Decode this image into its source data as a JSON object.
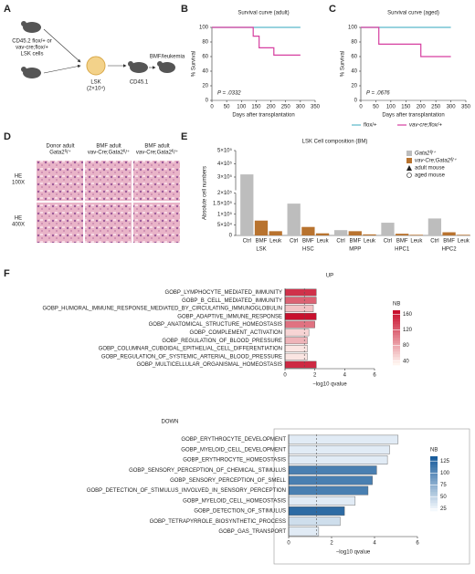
{
  "panel_labels": [
    "A",
    "B",
    "C",
    "D",
    "E",
    "F"
  ],
  "diagram": {
    "donor": [
      "CD45.2 flox/+ or",
      "vav-cre;flox/+",
      "LSK cells"
    ],
    "lsk": [
      "LSK",
      "(2×10⁴)"
    ],
    "recipient": "CD45.1",
    "outcome": "BMF/leukemia"
  },
  "histology": {
    "columns": [
      [
        "Donor adult",
        "Gata2ᶠˡ/⁺"
      ],
      [
        "BMF adult",
        "vav-Cre;Gata2ᶠˡ/⁺"
      ],
      [
        "BMF adult",
        "vav-Cre;Gata2ᶠˡ/⁺"
      ]
    ],
    "rows": [
      [
        "HE",
        "100X"
      ],
      [
        "HE",
        "400X"
      ]
    ]
  },
  "chart_data": [
    {
      "type": "line",
      "title": "Survival curve (adult)",
      "ylabel": "% Survival",
      "xlabel": "Days after transplantation",
      "annotation": "P = .0332",
      "xlim": [
        0,
        350
      ],
      "xticks": [
        0,
        50,
        100,
        150,
        200,
        250,
        300,
        350
      ],
      "ylim": [
        0,
        100
      ],
      "yticks": [
        0,
        20,
        40,
        60,
        80,
        100
      ],
      "legend": false,
      "series": [
        {
          "color": "#5bb8c9",
          "x": [
            0,
            300
          ],
          "values": [
            100,
            100
          ]
        },
        {
          "color": "#d63fa0",
          "x": [
            0,
            140,
            140,
            160,
            160,
            210,
            210,
            300
          ],
          "values": [
            100,
            100,
            88,
            88,
            72,
            72,
            62,
            62
          ]
        }
      ]
    },
    {
      "type": "line",
      "title": "Survival curve (aged)",
      "ylabel": "% Survival",
      "xlabel": "Days after transplantation",
      "annotation": "P = .0676",
      "xlim": [
        0,
        350
      ],
      "xticks": [
        0,
        50,
        100,
        150,
        200,
        250,
        300,
        350
      ],
      "ylim": [
        0,
        100
      ],
      "yticks": [
        0,
        20,
        40,
        60,
        80,
        100
      ],
      "legend": "bottom",
      "series": [
        {
          "name": "flox/+",
          "color": "#5bb8c9",
          "x": [
            0,
            300
          ],
          "values": [
            100,
            100
          ]
        },
        {
          "name": "vav-cre;flox/+",
          "color": "#d63fa0",
          "x": [
            0,
            60,
            60,
            200,
            200,
            300
          ],
          "values": [
            100,
            100,
            77,
            77,
            60,
            60
          ]
        }
      ]
    },
    {
      "type": "bar",
      "title": "LSK Cell composition (BM)",
      "ylabel": "Absolute cell numbers",
      "groups": [
        "LSK",
        "HSC",
        "MPP",
        "HPC1",
        "HPC2"
      ],
      "categories": [
        "Ctrl",
        "BMF",
        "Leuk"
      ],
      "colors": [
        "#bdbdbd",
        "#b8732f",
        "#b8732f"
      ],
      "values": [
        [
          320000,
          70000,
          20000
        ],
        [
          150000,
          40000,
          10000
        ],
        [
          25000,
          20000,
          5000
        ],
        [
          60000,
          8000,
          3000
        ],
        [
          80000,
          15000,
          3000
        ]
      ],
      "ylim": [
        0,
        500000
      ],
      "axis_break": 200000,
      "yticks": [
        0,
        {
          "value": 50000,
          "label": "5×10⁴"
        },
        {
          "value": 100000,
          "label": "1×10⁵"
        },
        {
          "value": 150000,
          "label": "1.5×10⁵"
        },
        {
          "value": 200000,
          "label": "2×10⁵"
        },
        {
          "value": 300000,
          "label": "3×10⁵"
        },
        {
          "value": 400000,
          "label": "4×10⁵"
        },
        {
          "value": 500000,
          "label": "5×10⁵"
        }
      ],
      "legend": [
        {
          "label": "Gata2ᶠˡ/⁺",
          "color": "#bdbdbd"
        },
        {
          "label": "vav-Cre;Gata2ᶠˡ/⁺",
          "color": "#b8732f"
        },
        {
          "label": "adult mouse",
          "marker": "triangle"
        },
        {
          "label": "aged mouse",
          "marker": "circle"
        }
      ]
    },
    {
      "type": "hbar",
      "header": "UP",
      "xlabel": "−log10 qvalue",
      "xlim": [
        0,
        6
      ],
      "xticks": [
        0,
        2,
        4,
        6
      ],
      "threshold": 1.3,
      "categories": [
        "GOBP_LYMPHOCYTE_MEDIATED_IMMUNITY",
        "GOBP_B_CELL_MEDIATED_IMMUNITY",
        "GOBP_HUMORAL_IMMUNE_RESPONSE_MEDIATED_BY_CIRCULATING_IMMUNOGLOBULIN",
        "GOBP_ADAPTIVE_IMMUNE_RESPONSE",
        "GOBP_ANATOMICAL_STRUCTURE_HOMEOSTASIS",
        "GOBP_COMPLEMENT_ACTIVATION",
        "GOBP_REGULATION_OF_BLOOD_PRESSURE",
        "GOBP_COLUMNAR_CUBOIDAL_EPITHELIAL_CELL_DIFFERENTIATION",
        "GOBP_REGULATION_OF_SYSTEMIC_ARTERIAL_BLOOD_PRESSURE",
        "GOBP_MULTICELLULAR_ORGANISMAL_HOMEOSTASIS"
      ],
      "values": [
        2.1,
        2.1,
        1.9,
        2.1,
        2.0,
        1.6,
        1.5,
        1.5,
        1.5,
        2.1
      ],
      "nb": [
        150,
        120,
        60,
        170,
        110,
        50,
        70,
        40,
        40,
        155
      ],
      "colorbar": {
        "title": "NB",
        "lim": [
          30,
          170
        ],
        "ticks": [
          40,
          80,
          120,
          160
        ],
        "colors": [
          "#fff5f0",
          "#c8102e"
        ]
      }
    },
    {
      "type": "hbar",
      "header": "DOWN",
      "xlabel": "−log10 qvalue",
      "xlim": [
        0,
        6
      ],
      "xticks": [
        0,
        2,
        4,
        6
      ],
      "threshold": 1.3,
      "categories": [
        "GOBP_ERYTHROCYTE_DEVELOPMENT",
        "GOBP_MYELOID_CELL_DEVELOPMENT",
        "GOBP_ERYTHROCYTE_HOMEOSTASIS",
        "GOBP_SENSORY_PERCEPTION_OF_CHEMICAL_STIMULUS",
        "GOBP_SENSORY_PERCEPTION_OF_SMELL",
        "GOBP_DETECTION_OF_STIMULUS_INVOLVED_IN_SENSORY_PERCEPTION",
        "GOBP_MYELOID_CELL_HOMEOSTASIS",
        "GOBP_DETECTION_OF_STIMULUS",
        "GOBP_TETRAPYRROLE_BIOSYNTHETIC_PROCESS",
        "GOBP_GAS_TRANSPORT"
      ],
      "values": [
        5.1,
        4.7,
        4.6,
        4.1,
        3.9,
        3.7,
        3.1,
        2.6,
        2.4,
        1.4
      ],
      "nb": [
        30,
        30,
        30,
        110,
        110,
        110,
        30,
        125,
        40,
        30
      ],
      "colorbar": {
        "title": "NB",
        "lim": [
          20,
          135
        ],
        "ticks": [
          25,
          50,
          75,
          100,
          125
        ],
        "colors": [
          "#f4f9fd",
          "#1a5d9c"
        ]
      }
    }
  ]
}
